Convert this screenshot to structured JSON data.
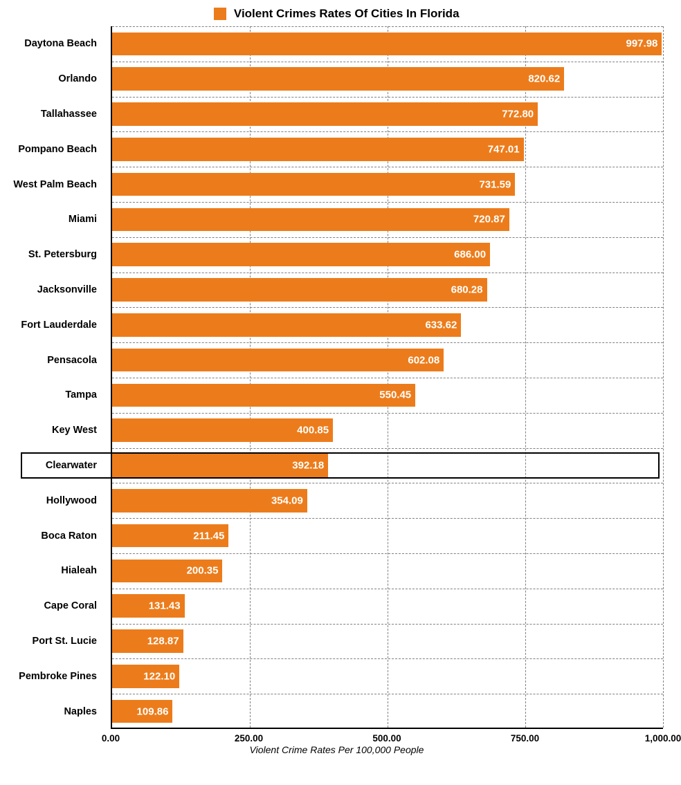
{
  "chart": {
    "type": "bar_horizontal",
    "title": "Violent Crimes Rates Of Cities In Florida",
    "x_axis_label": "Violent Crime Rates Per 100,000 People",
    "bar_color": "#ec7c1b",
    "value_label_color": "#ffffff",
    "legend_swatch_color": "#ec7c1b",
    "background_color": "#ffffff",
    "axis_color": "#000000",
    "grid_color": "#808080",
    "title_fontsize": 17,
    "title_fontweight": 700,
    "ylabel_fontsize": 14.5,
    "ylabel_fontweight": 700,
    "value_fontsize": 15,
    "value_fontweight": 700,
    "xtick_fontsize": 13.5,
    "xaxis_label_fontsize": 14,
    "xlim": [
      0,
      1000
    ],
    "xtick_step": 250,
    "xticks": [
      {
        "value": 0,
        "label": "0.00"
      },
      {
        "value": 250,
        "label": "250.00"
      },
      {
        "value": 500,
        "label": "500.00"
      },
      {
        "value": 750,
        "label": "750.00"
      },
      {
        "value": 1000,
        "label": "1,000.00"
      }
    ],
    "bar_height_ratio": 0.66,
    "highlighted_category": "Clearwater",
    "data": [
      {
        "category": "Daytona Beach",
        "value": 997.98,
        "label": "997.98"
      },
      {
        "category": "Orlando",
        "value": 820.62,
        "label": "820.62"
      },
      {
        "category": "Tallahassee",
        "value": 772.8,
        "label": "772.80"
      },
      {
        "category": "Pompano Beach",
        "value": 747.01,
        "label": "747.01"
      },
      {
        "category": "West Palm Beach",
        "value": 731.59,
        "label": "731.59"
      },
      {
        "category": "Miami",
        "value": 720.87,
        "label": "720.87"
      },
      {
        "category": "St. Petersburg",
        "value": 686.0,
        "label": "686.00"
      },
      {
        "category": "Jacksonville",
        "value": 680.28,
        "label": "680.28"
      },
      {
        "category": "Fort Lauderdale",
        "value": 633.62,
        "label": "633.62"
      },
      {
        "category": "Pensacola",
        "value": 602.08,
        "label": "602.08"
      },
      {
        "category": "Tampa",
        "value": 550.45,
        "label": "550.45"
      },
      {
        "category": "Key West",
        "value": 400.85,
        "label": "400.85"
      },
      {
        "category": "Clearwater",
        "value": 392.18,
        "label": "392.18"
      },
      {
        "category": "Hollywood",
        "value": 354.09,
        "label": "354.09"
      },
      {
        "category": "Boca Raton",
        "value": 211.45,
        "label": "211.45"
      },
      {
        "category": "Hialeah",
        "value": 200.35,
        "label": "200.35"
      },
      {
        "category": "Cape Coral",
        "value": 131.43,
        "label": "131.43"
      },
      {
        "category": "Port St. Lucie",
        "value": 128.87,
        "label": "128.87"
      },
      {
        "category": "Pembroke Pines",
        "value": 122.1,
        "label": "122.10"
      },
      {
        "category": "Naples",
        "value": 109.86,
        "label": "109.86"
      }
    ]
  }
}
